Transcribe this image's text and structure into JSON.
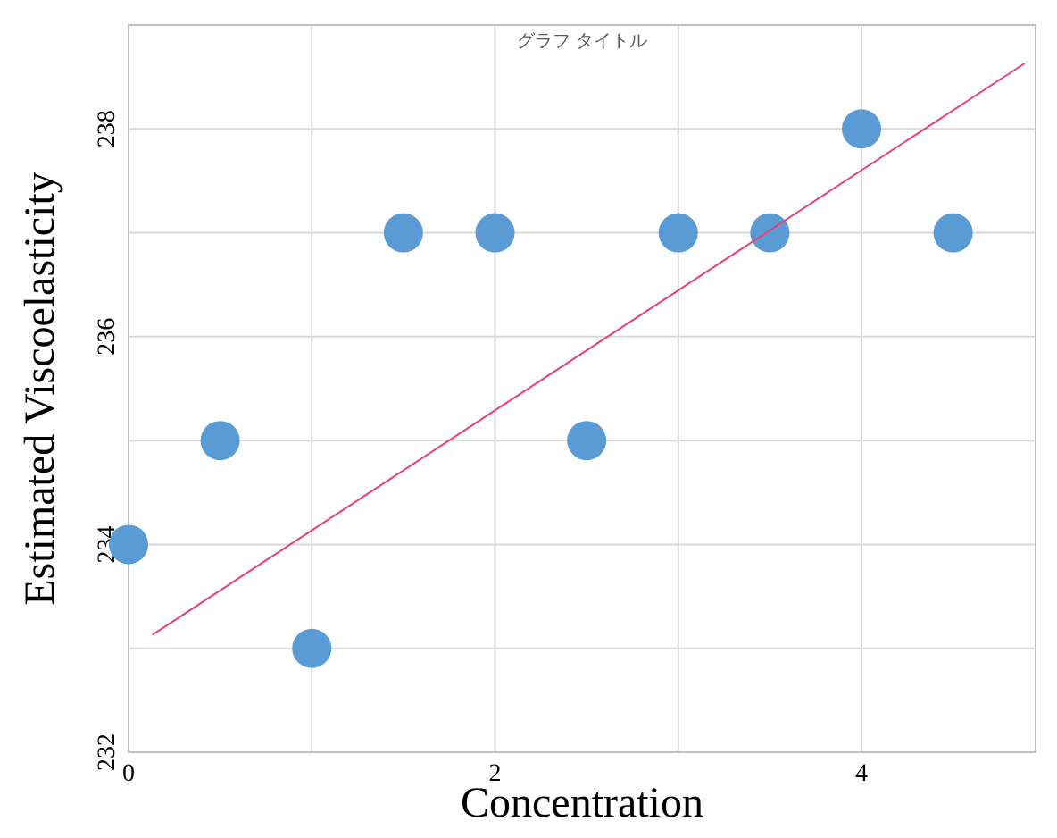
{
  "chart_data": {
    "type": "scatter",
    "title": "グラフ タイトル",
    "xlabel": "Concentration",
    "ylabel": "Estimated Viscoelasticity",
    "xlim": [
      0,
      4.95
    ],
    "ylim": [
      232,
      239
    ],
    "xticks": [
      0,
      {
        "value": 1,
        "label": null
      },
      2,
      {
        "value": 3,
        "label": null
      },
      4
    ],
    "yticks": [
      232,
      {
        "value": 233,
        "label": null
      },
      234,
      {
        "value": 235,
        "label": null
      },
      236,
      {
        "value": 237,
        "label": null
      },
      238
    ],
    "grid": true,
    "marker": "circle",
    "series": [
      {
        "color": "#5b9bd5",
        "x": [
          0,
          0.5,
          1,
          1.5,
          2,
          2.5,
          3,
          3.5,
          4,
          4.5
        ],
        "values": [
          234,
          235,
          233,
          237,
          237,
          235,
          237,
          237,
          238,
          237
        ]
      },
      {
        "type": "line",
        "marker": "none",
        "color": "#e8417a",
        "x": [
          0.13,
          4.89
        ],
        "values": [
          233.13,
          238.63
        ]
      }
    ]
  }
}
